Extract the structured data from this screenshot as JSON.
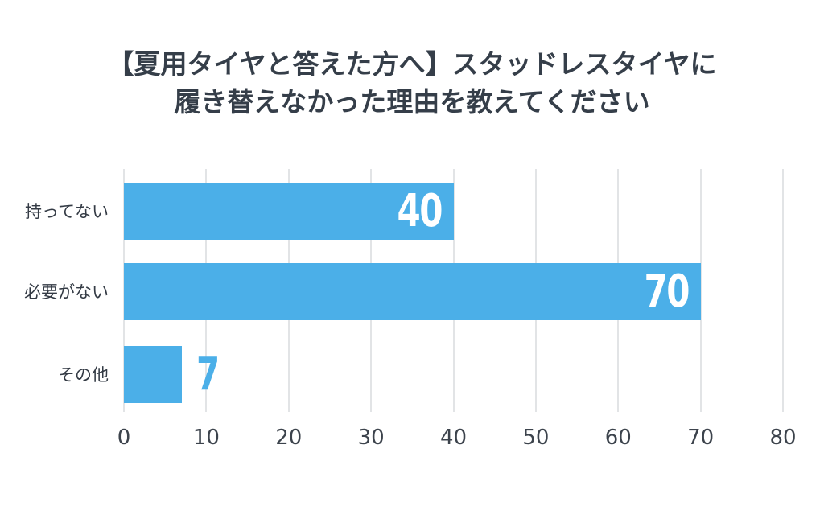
{
  "chart_data": {
    "type": "bar",
    "orientation": "horizontal",
    "title": "【夏用タイヤと答えた方へ】スタッドレスタイヤに履き替えなかった理由を教えてください",
    "title_lines": [
      "【夏用タイヤと答えた方へ】スタッドレスタイヤに",
      "履き替えなかった理由を教えてください"
    ],
    "categories": [
      "持ってない",
      "必要がない",
      "その他"
    ],
    "values": [
      40,
      70,
      7
    ],
    "value_labels": [
      "40",
      "70",
      "7"
    ],
    "xlabel": "",
    "ylabel": "",
    "xlim": [
      0,
      80
    ],
    "x_ticks": [
      0,
      10,
      20,
      30,
      40,
      50,
      60,
      70,
      80
    ],
    "grid": "vertical-only",
    "legend": "none"
  },
  "colors": {
    "bar": "#4bafe8",
    "value_label_inside": "#ffffff",
    "value_label_outside": "#4bafe8",
    "title_text": "#353e49",
    "category_text": "#343b45",
    "tick_text": "#3c434c",
    "gridline": "#e2e4e6",
    "background": "#ffffff"
  }
}
